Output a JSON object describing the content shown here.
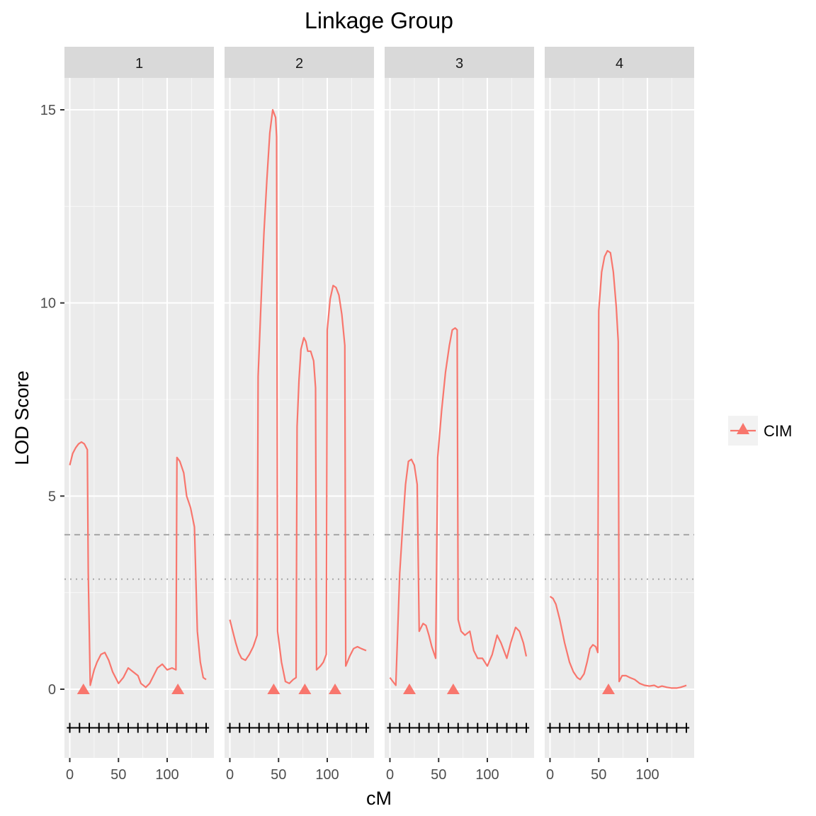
{
  "chart_data": {
    "type": "line",
    "title": "Linkage Group",
    "xlabel": "cM",
    "ylabel": "LOD Score",
    "ylim": [
      -1.75,
      16.2
    ],
    "yticks": [
      0,
      5,
      10,
      15
    ],
    "xticks": [
      0,
      50,
      100
    ],
    "xlim": [
      -5,
      145
    ],
    "grid": true,
    "legend_position": "right",
    "colors": {
      "series": "#F8766D",
      "panel_bg": "#EBEBEB",
      "strip_bg": "#D9D9D9",
      "threshold": "#A6A6A6"
    },
    "thresholds": [
      {
        "style": "dashed",
        "value": 4.0
      },
      {
        "style": "dotted",
        "value": 2.85
      }
    ],
    "legend": [
      {
        "label": "CIM",
        "marker": "triangle"
      }
    ],
    "marker_row_y": -1.0,
    "markers_x": [
      0,
      10,
      20,
      30,
      40,
      50,
      60,
      70,
      80,
      90,
      100,
      110,
      120,
      130,
      140
    ],
    "panels": [
      {
        "label": "1",
        "curve": [
          [
            0,
            5.8
          ],
          [
            3,
            6.1
          ],
          [
            6,
            6.25
          ],
          [
            9,
            6.35
          ],
          [
            12,
            6.4
          ],
          [
            15,
            6.35
          ],
          [
            18,
            6.2
          ],
          [
            19,
            3.0
          ],
          [
            21,
            0.1
          ],
          [
            25,
            0.5
          ],
          [
            28,
            0.7
          ],
          [
            32,
            0.9
          ],
          [
            36,
            0.95
          ],
          [
            40,
            0.75
          ],
          [
            44,
            0.45
          ],
          [
            50,
            0.15
          ],
          [
            55,
            0.3
          ],
          [
            60,
            0.55
          ],
          [
            65,
            0.45
          ],
          [
            70,
            0.35
          ],
          [
            73,
            0.15
          ],
          [
            78,
            0.05
          ],
          [
            82,
            0.15
          ],
          [
            86,
            0.35
          ],
          [
            90,
            0.55
          ],
          [
            95,
            0.65
          ],
          [
            100,
            0.5
          ],
          [
            105,
            0.55
          ],
          [
            109,
            0.5
          ],
          [
            110,
            6.0
          ],
          [
            113,
            5.9
          ],
          [
            117,
            5.6
          ],
          [
            120,
            5.0
          ],
          [
            124,
            4.7
          ],
          [
            128,
            4.2
          ],
          [
            131,
            1.5
          ],
          [
            134,
            0.7
          ],
          [
            137,
            0.3
          ],
          [
            140,
            0.25
          ]
        ],
        "qtl_peaks_x": [
          14,
          111
        ]
      },
      {
        "label": "2",
        "curve": [
          [
            0,
            1.8
          ],
          [
            3,
            1.5
          ],
          [
            6,
            1.2
          ],
          [
            9,
            0.95
          ],
          [
            12,
            0.8
          ],
          [
            16,
            0.75
          ],
          [
            20,
            0.9
          ],
          [
            24,
            1.1
          ],
          [
            28,
            1.4
          ],
          [
            29,
            8.1
          ],
          [
            32,
            10.0
          ],
          [
            35,
            11.8
          ],
          [
            38,
            13.2
          ],
          [
            41,
            14.4
          ],
          [
            44,
            15.0
          ],
          [
            47,
            14.8
          ],
          [
            48,
            14.3
          ],
          [
            49,
            1.5
          ],
          [
            53,
            0.7
          ],
          [
            57,
            0.2
          ],
          [
            61,
            0.15
          ],
          [
            65,
            0.25
          ],
          [
            68,
            0.3
          ],
          [
            69,
            6.8
          ],
          [
            71,
            8.0
          ],
          [
            73,
            8.8
          ],
          [
            76,
            9.1
          ],
          [
            78,
            9.0
          ],
          [
            80,
            8.75
          ],
          [
            83,
            8.75
          ],
          [
            86,
            8.5
          ],
          [
            88,
            7.8
          ],
          [
            89,
            0.5
          ],
          [
            93,
            0.6
          ],
          [
            96,
            0.7
          ],
          [
            99,
            0.9
          ],
          [
            100,
            9.3
          ],
          [
            103,
            10.1
          ],
          [
            106,
            10.45
          ],
          [
            109,
            10.4
          ],
          [
            112,
            10.2
          ],
          [
            115,
            9.7
          ],
          [
            118,
            8.9
          ],
          [
            119,
            0.6
          ],
          [
            123,
            0.85
          ],
          [
            127,
            1.05
          ],
          [
            131,
            1.1
          ],
          [
            135,
            1.05
          ],
          [
            140,
            1.0
          ]
        ],
        "qtl_peaks_x": [
          45,
          77,
          108
        ]
      },
      {
        "label": "3",
        "curve": [
          [
            0,
            0.3
          ],
          [
            3,
            0.2
          ],
          [
            6,
            0.1
          ],
          [
            10,
            3.0
          ],
          [
            13,
            4.2
          ],
          [
            16,
            5.3
          ],
          [
            19,
            5.9
          ],
          [
            22,
            5.95
          ],
          [
            25,
            5.8
          ],
          [
            28,
            5.3
          ],
          [
            30,
            1.5
          ],
          [
            34,
            1.7
          ],
          [
            37,
            1.65
          ],
          [
            40,
            1.4
          ],
          [
            43,
            1.1
          ],
          [
            47,
            0.8
          ],
          [
            49,
            6.0
          ],
          [
            53,
            7.2
          ],
          [
            57,
            8.2
          ],
          [
            61,
            8.9
          ],
          [
            64,
            9.3
          ],
          [
            67,
            9.35
          ],
          [
            69,
            9.3
          ],
          [
            70,
            1.8
          ],
          [
            73,
            1.5
          ],
          [
            77,
            1.4
          ],
          [
            82,
            1.5
          ],
          [
            86,
            1.0
          ],
          [
            90,
            0.8
          ],
          [
            95,
            0.8
          ],
          [
            100,
            0.6
          ],
          [
            105,
            0.9
          ],
          [
            110,
            1.4
          ],
          [
            114,
            1.2
          ],
          [
            120,
            0.8
          ],
          [
            124,
            1.2
          ],
          [
            129,
            1.6
          ],
          [
            133,
            1.5
          ],
          [
            137,
            1.2
          ],
          [
            140,
            0.85
          ]
        ],
        "qtl_peaks_x": [
          20,
          65
        ]
      },
      {
        "label": "4",
        "curve": [
          [
            0,
            2.4
          ],
          [
            3,
            2.35
          ],
          [
            6,
            2.2
          ],
          [
            10,
            1.8
          ],
          [
            15,
            1.2
          ],
          [
            20,
            0.7
          ],
          [
            24,
            0.45
          ],
          [
            28,
            0.3
          ],
          [
            31,
            0.25
          ],
          [
            35,
            0.4
          ],
          [
            38,
            0.7
          ],
          [
            41,
            1.05
          ],
          [
            44,
            1.15
          ],
          [
            47,
            1.1
          ],
          [
            49,
            0.95
          ],
          [
            50,
            9.8
          ],
          [
            53,
            10.8
          ],
          [
            56,
            11.2
          ],
          [
            59,
            11.35
          ],
          [
            62,
            11.3
          ],
          [
            65,
            10.8
          ],
          [
            68,
            9.9
          ],
          [
            70,
            9.0
          ],
          [
            71,
            0.2
          ],
          [
            74,
            0.35
          ],
          [
            78,
            0.35
          ],
          [
            82,
            0.3
          ],
          [
            87,
            0.25
          ],
          [
            92,
            0.15
          ],
          [
            97,
            0.1
          ],
          [
            102,
            0.08
          ],
          [
            107,
            0.1
          ],
          [
            111,
            0.05
          ],
          [
            115,
            0.08
          ],
          [
            120,
            0.05
          ],
          [
            125,
            0.03
          ],
          [
            130,
            0.03
          ],
          [
            134,
            0.05
          ],
          [
            138,
            0.08
          ],
          [
            140,
            0.1
          ]
        ],
        "qtl_peaks_x": [
          60
        ]
      }
    ]
  }
}
